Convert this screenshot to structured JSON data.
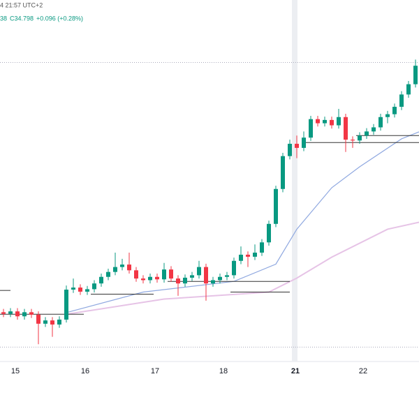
{
  "chart_data": {
    "type": "candlestick",
    "title": "4 21:57 UTC+2",
    "annotations": [
      "38",
      "C34.798",
      "+0.096 (+0.28%)"
    ],
    "up_color": "#089981",
    "down_color": "#f23645",
    "ylim": [
      27.6,
      36.4
    ],
    "xlim": [
      -0.5,
      59.5
    ],
    "xticks": [
      {
        "value": 1.7,
        "label": "15"
      },
      {
        "value": 11.7,
        "label": "16"
      },
      {
        "value": 21.7,
        "label": "17"
      },
      {
        "value": 31.5,
        "label": "18"
      },
      {
        "value": 41.8,
        "label": "21"
      },
      {
        "value": 51.5,
        "label": "22"
      }
    ],
    "open": [
      28.8,
      28.76,
      28.82,
      28.7,
      28.8,
      28.74,
      28.52,
      28.6,
      28.5,
      28.62,
      29.35,
      29.4,
      29.3,
      29.36,
      29.5,
      29.66,
      29.78,
      29.9,
      29.96,
      29.82,
      29.62,
      29.58,
      29.66,
      29.6,
      29.84,
      29.62,
      29.5,
      29.64,
      29.7,
      29.9,
      29.5,
      29.58,
      29.66,
      29.7,
      30.05,
      30.2,
      30.15,
      30.25,
      30.5,
      30.95,
      31.8,
      32.6,
      32.9,
      32.8,
      33.05,
      33.5,
      33.4,
      33.48,
      33.35,
      33.55,
      33.0,
      32.98,
      33.1,
      33.2,
      33.3,
      33.55,
      33.62,
      33.8,
      34.1,
      34.35
    ],
    "high": [
      28.88,
      28.9,
      28.9,
      28.88,
      28.88,
      28.82,
      28.68,
      28.68,
      28.7,
      29.45,
      29.62,
      29.48,
      29.44,
      29.58,
      29.74,
      29.86,
      30.25,
      30.1,
      30.25,
      29.9,
      29.7,
      29.74,
      29.74,
      30.0,
      29.92,
      29.7,
      29.72,
      29.78,
      30.05,
      29.98,
      29.66,
      29.74,
      29.78,
      30.13,
      30.4,
      30.28,
      30.45,
      30.58,
      31.03,
      31.88,
      32.68,
      33.0,
      33.1,
      33.2,
      33.58,
      33.58,
      33.56,
      33.56,
      33.75,
      33.63,
      33.08,
      33.18,
      33.28,
      33.38,
      33.63,
      33.7,
      33.88,
      34.18,
      34.43,
      34.95
    ],
    "low": [
      28.68,
      28.68,
      28.62,
      28.62,
      28.66,
      28.02,
      28.44,
      28.2,
      28.42,
      28.55,
      29.27,
      29.22,
      29.22,
      29.28,
      29.42,
      29.58,
      29.7,
      29.82,
      29.74,
      29.54,
      29.5,
      29.5,
      29.52,
      29.52,
      29.54,
      29.2,
      29.42,
      29.56,
      29.62,
      29.08,
      29.42,
      29.5,
      29.58,
      29.62,
      29.97,
      29.9,
      30.07,
      30.17,
      30.42,
      30.87,
      31.72,
      32.52,
      32.55,
      32.72,
      32.97,
      33.32,
      33.32,
      33.27,
      33.27,
      32.7,
      32.8,
      32.9,
      33.02,
      33.12,
      33.22,
      33.4,
      33.54,
      33.72,
      34.02,
      34.27
    ],
    "close": [
      28.76,
      28.82,
      28.7,
      28.8,
      28.74,
      28.52,
      28.6,
      28.5,
      28.62,
      29.35,
      29.4,
      29.3,
      29.36,
      29.5,
      29.66,
      29.78,
      29.9,
      29.96,
      29.82,
      29.62,
      29.58,
      29.66,
      29.6,
      29.84,
      29.62,
      29.5,
      29.64,
      29.7,
      29.9,
      29.5,
      29.58,
      29.66,
      29.7,
      30.05,
      30.2,
      30.15,
      30.25,
      30.5,
      30.95,
      31.8,
      32.6,
      32.9,
      32.8,
      33.05,
      33.5,
      33.4,
      33.48,
      33.35,
      33.55,
      33.0,
      32.98,
      33.1,
      33.2,
      33.3,
      33.55,
      33.62,
      33.8,
      34.1,
      34.35,
      34.8
    ],
    "series": [
      {
        "color": "#8fa8e0",
        "x": [
          9,
          20,
          33,
          39,
          42,
          47,
          51,
          57,
          59.5
        ],
        "values": [
          28.79,
          29.29,
          29.55,
          29.97,
          30.82,
          31.83,
          32.34,
          33.02,
          33.19
        ]
      },
      {
        "color": "#e6c3e6",
        "x": [
          9,
          23,
          38,
          42,
          47,
          55,
          59.5
        ],
        "values": [
          28.75,
          29.12,
          29.29,
          29.63,
          30.14,
          30.82,
          30.99
        ]
      }
    ],
    "levels": [
      {
        "value": 29.33,
        "x": [
          -0.5,
          1
        ]
      },
      {
        "value": 28.75,
        "x": [
          -0.5,
          11.5
        ]
      },
      {
        "value": 29.24,
        "x": [
          12.5,
          21.5
        ]
      },
      {
        "value": 29.55,
        "x": [
          23.5,
          41
        ]
      },
      {
        "value": 29.29,
        "x": [
          32.5,
          41
        ]
      },
      {
        "value": 32.93,
        "x": [
          43,
          59.5
        ]
      },
      {
        "value": 33.1,
        "x": [
          50.5,
          59.5
        ]
      }
    ],
    "reference_lines": [
      34.88,
      27.95
    ],
    "weekend_gap": [
      41.3,
      42.1
    ]
  }
}
